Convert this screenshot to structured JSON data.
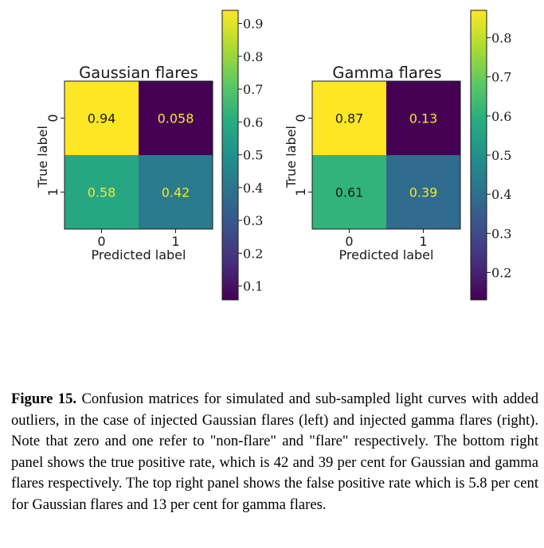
{
  "chart_data": [
    {
      "type": "heatmap",
      "title": "Gaussian flares",
      "xlabel": "Predicted label",
      "ylabel": "True label",
      "x_categories": [
        "0",
        "1"
      ],
      "y_categories": [
        "0",
        "1"
      ],
      "values": [
        [
          0.94,
          0.058
        ],
        [
          0.58,
          0.42
        ]
      ],
      "value_labels": [
        [
          "0.94",
          "0.058"
        ],
        [
          "0.58",
          "0.42"
        ]
      ],
      "colorbar": {
        "range": [
          0.058,
          0.94
        ],
        "ticks": [
          0.1,
          0.2,
          0.3,
          0.4,
          0.5,
          0.6,
          0.7,
          0.8,
          0.9
        ],
        "tick_labels": [
          "0.1",
          "0.2",
          "0.3",
          "0.4",
          "0.5",
          "0.6",
          "0.7",
          "0.8",
          "0.9"
        ],
        "colormap": "viridis"
      }
    },
    {
      "type": "heatmap",
      "title": "Gamma flares",
      "xlabel": "Predicted label",
      "ylabel": "True label",
      "x_categories": [
        "0",
        "1"
      ],
      "y_categories": [
        "0",
        "1"
      ],
      "values": [
        [
          0.87,
          0.13
        ],
        [
          0.61,
          0.39
        ]
      ],
      "value_labels": [
        [
          "0.87",
          "0.13"
        ],
        [
          "0.61",
          "0.39"
        ]
      ],
      "colorbar": {
        "range": [
          0.13,
          0.87
        ],
        "ticks": [
          0.2,
          0.3,
          0.4,
          0.5,
          0.6,
          0.7,
          0.8
        ],
        "tick_labels": [
          "0.2",
          "0.3",
          "0.4",
          "0.5",
          "0.6",
          "0.7",
          "0.8"
        ],
        "colormap": "viridis"
      }
    }
  ],
  "caption": {
    "label": "Figure 15.",
    "text": " Confusion matrices for simulated and sub-sampled light curves with added outliers, in the case of injected Gaussian flares (left) and injected gamma flares (right). Note that zero and one refer to \"non-flare\" and \"flare\" respectively. The bottom right panel shows the true positive rate, which is 42 and 39 per cent for Gaussian and gamma flares respectively. The top right panel shows the false positive rate which is 5.8 per cent for Gaussian flares and 13 per cent for gamma flares."
  },
  "colors": {
    "dark_text": "#1a1a1a",
    "light_text": "#fde725"
  }
}
